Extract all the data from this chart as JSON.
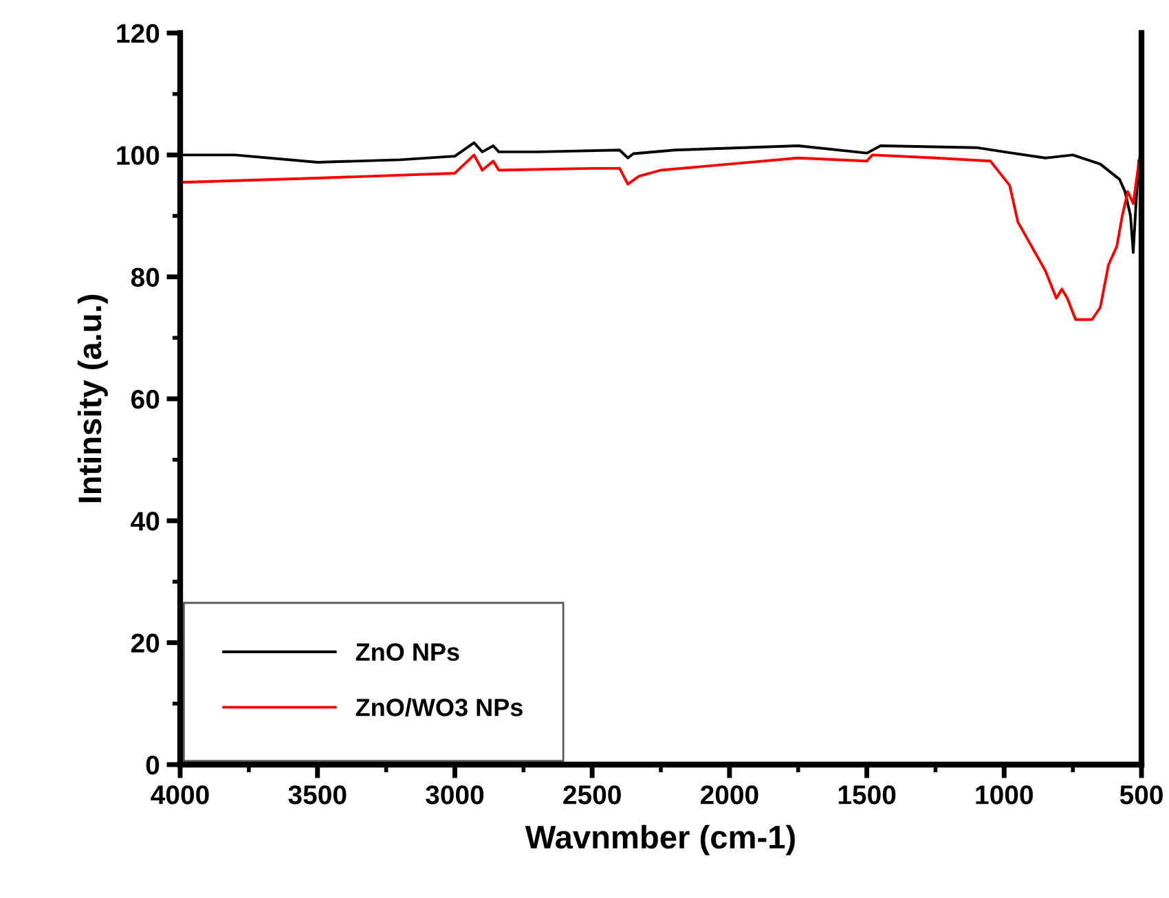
{
  "chart_data": {
    "type": "line",
    "xlabel": "Wavnmber (cm-1)",
    "ylabel": "Intinsity (a.u.)",
    "xlim": [
      4000,
      500
    ],
    "xticks": [
      4000,
      3500,
      3000,
      2500,
      2000,
      1500,
      1000,
      500
    ],
    "ylim": [
      0,
      120
    ],
    "yticks": [
      0,
      20,
      40,
      60,
      80,
      100,
      120
    ],
    "grid": false,
    "legend": "bottom left",
    "line_style": "solid",
    "marker": "none",
    "series": [
      {
        "name": "ZnO NPs",
        "color": "#000000",
        "x": [
          4000,
          3800,
          3500,
          3200,
          3000,
          2930,
          2900,
          2860,
          2840,
          2700,
          2400,
          2370,
          2350,
          2200,
          1750,
          1500,
          1450,
          1100,
          1000,
          850,
          750,
          650,
          580,
          560,
          540,
          530,
          520,
          510
        ],
        "values": [
          100,
          100,
          98.8,
          99.2,
          99.8,
          102,
          100.5,
          101.5,
          100.5,
          100.5,
          100.8,
          99.5,
          100.2,
          100.8,
          101.5,
          100.3,
          101.5,
          101.2,
          100.5,
          99.5,
          100,
          98.5,
          96,
          94,
          90,
          84,
          92,
          99
        ]
      },
      {
        "name": "ZnO/WO3 NPs",
        "color": "#ff0000",
        "x": [
          4000,
          3500,
          3000,
          2930,
          2900,
          2860,
          2840,
          2500,
          2400,
          2370,
          2330,
          2250,
          2000,
          1750,
          1500,
          1480,
          1250,
          1050,
          980,
          950,
          900,
          850,
          810,
          790,
          770,
          740,
          680,
          650,
          620,
          590,
          570,
          550,
          530,
          515,
          505
        ],
        "values": [
          95.5,
          96.2,
          97,
          100,
          97.5,
          99,
          97.5,
          97.8,
          97.8,
          95.2,
          96.5,
          97.5,
          98.5,
          99.5,
          99,
          100,
          99.5,
          99,
          95,
          89,
          85,
          81,
          76.5,
          78,
          76.5,
          73,
          73,
          75,
          82,
          85,
          90,
          94,
          92,
          97,
          100
        ]
      }
    ]
  }
}
